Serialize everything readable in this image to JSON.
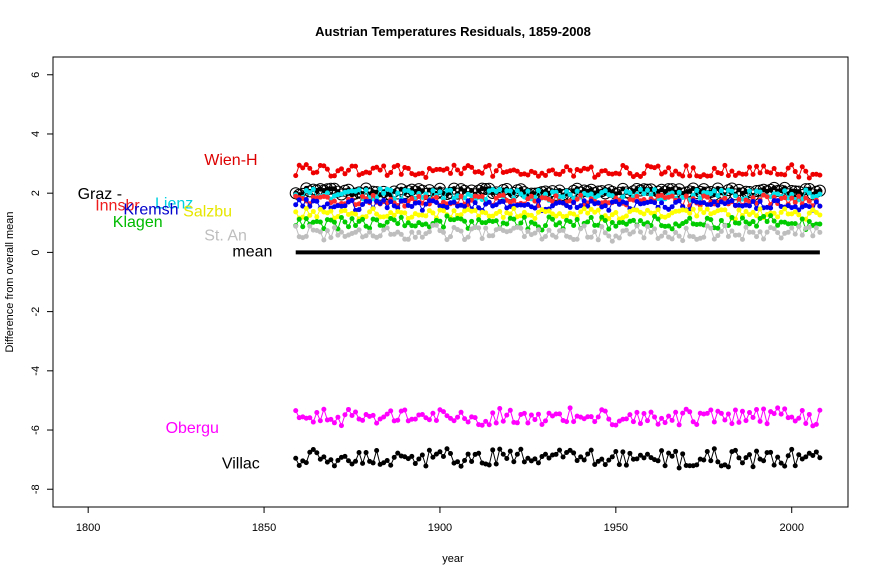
{
  "chart_data": {
    "type": "line",
    "title": "Austrian Temperatures Residuals, 1859-2008",
    "xlabel": "year",
    "ylabel": "Difference from overall mean",
    "xlim": [
      1790,
      2016
    ],
    "ylim": [
      -8.6,
      6.6
    ],
    "xticks": [
      1800,
      1850,
      1900,
      1950,
      2000
    ],
    "yticks": [
      6,
      4,
      2,
      0,
      -2,
      -4,
      -6,
      -8
    ],
    "year_start": 1859,
    "year_end": 2008,
    "series": [
      {
        "name": "Wien-H",
        "color": "#ee0000",
        "base": 2.75,
        "amp": 0.22,
        "label_pos": [
          1833,
          3.1
        ],
        "label_color": "#dd0000"
      },
      {
        "name": "Graz -",
        "color": "#000000",
        "base": 2.05,
        "amp": 0.12,
        "open_markers": true,
        "label_pos": [
          1797,
          1.95
        ],
        "label_color": "#000000"
      },
      {
        "name": "Lienz",
        "color": "#00e5ee",
        "base": 1.95,
        "amp": 0.18,
        "label_pos": [
          1819,
          1.62
        ],
        "label_color": "#00d0e0"
      },
      {
        "name": "Innsbr",
        "color": "#ff2a2a",
        "base": 1.75,
        "amp": 0.18,
        "label_pos": [
          1802,
          1.55
        ],
        "label_color": "#ee1c1c"
      },
      {
        "name": "Kremsh",
        "color": "#0000ee",
        "base": 1.6,
        "amp": 0.17,
        "label_pos": [
          1810,
          1.42
        ],
        "label_color": "#0000cc"
      },
      {
        "name": "Salzbu",
        "color": "#ffff00",
        "base": 1.3,
        "amp": 0.17,
        "label_pos": [
          1827,
          1.35
        ],
        "label_color": "#e6e600"
      },
      {
        "name": "Klagen",
        "color": "#00cc00",
        "base": 1.0,
        "amp": 0.22,
        "label_pos": [
          1807,
          1.0
        ],
        "label_color": "#00bb00"
      },
      {
        "name": "St. An",
        "color": "#bebebe",
        "base": 0.65,
        "amp": 0.25,
        "label_pos": [
          1833,
          0.55
        ],
        "label_color": "#bebebe"
      },
      {
        "name": "mean",
        "color": "#000000",
        "base": 0,
        "amp": 0,
        "mean_line": true,
        "label_pos": [
          1841,
          0
        ],
        "label_color": "#000000"
      },
      {
        "name": "Obergu",
        "color": "#ff00ff",
        "base": -5.55,
        "amp": 0.28,
        "label_pos": [
          1822,
          -5.95
        ],
        "label_color": "#ff00ff"
      },
      {
        "name": "Villac",
        "color": "#000000",
        "base": -6.95,
        "amp": 0.3,
        "label_pos": [
          1838,
          -7.15
        ],
        "label_color": "#000000"
      }
    ]
  }
}
